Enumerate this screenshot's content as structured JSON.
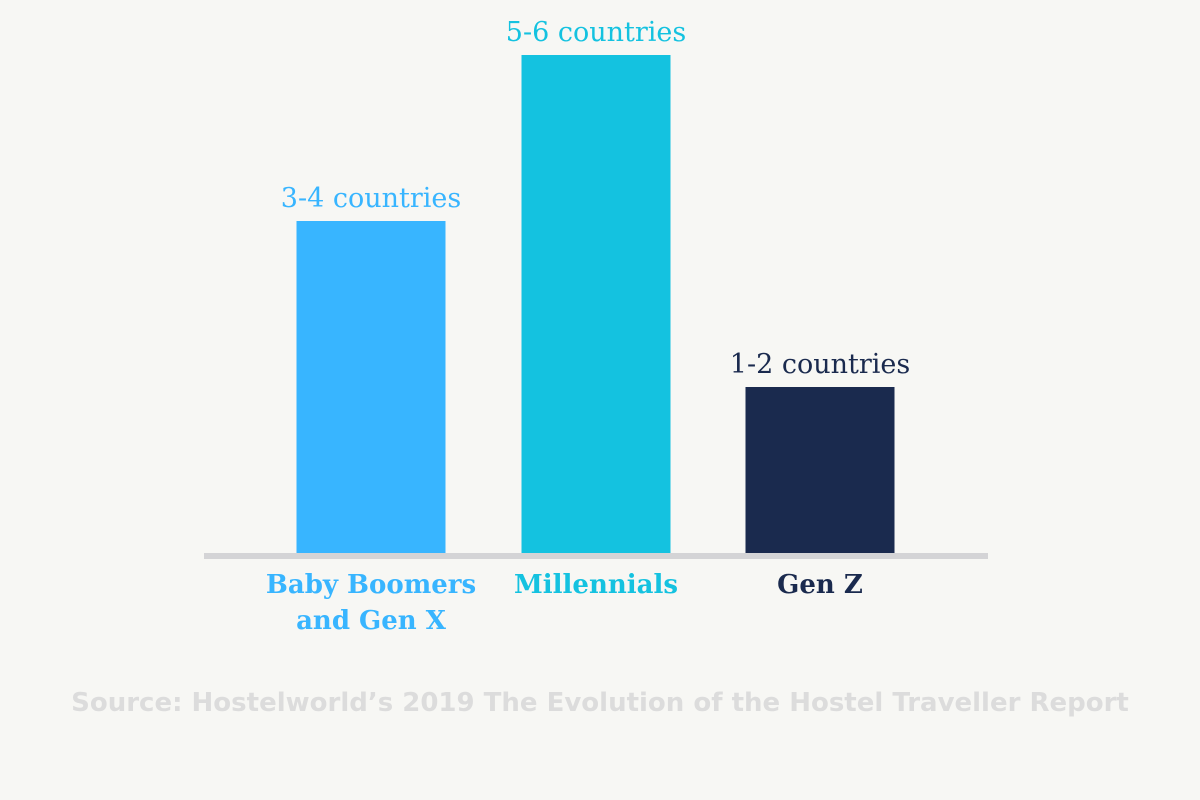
{
  "chart_data": {
    "type": "bar",
    "title": "",
    "xlabel": "",
    "ylabel": "",
    "ylim": [
      0,
      6
    ],
    "grid": false,
    "legend": "none",
    "categories": [
      {
        "lines": [
          "Baby Boomers",
          "and Gen X"
        ],
        "color": "#38b5ff"
      },
      {
        "lines": [
          "Millennials"
        ],
        "color": "#14c2e0"
      },
      {
        "lines": [
          "Gen Z"
        ],
        "color": "#1a2a4e"
      }
    ],
    "values": [
      4,
      6,
      2
    ],
    "value_labels": [
      "3-4 countries",
      "5-6 countries",
      "1-2 countries"
    ]
  },
  "axis_color": "#d4d4d6",
  "source": "Source: Hostelworld’s 2019 The Evolution of the Hostel Traveller Report"
}
